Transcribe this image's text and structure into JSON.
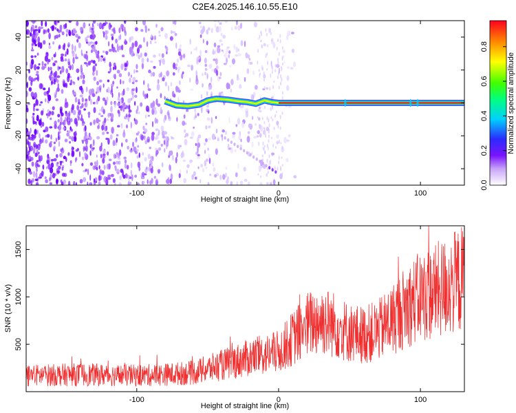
{
  "title": "C2E4.2025.146.10.55.E10",
  "colors": {
    "snr_line": "#f03030",
    "axis": "#000000",
    "background": "#ffffff"
  },
  "chart_data": [
    {
      "type": "heatmap",
      "xlabel": "Height of straight line (km)",
      "ylabel": "Frequency (Hz)",
      "xlim": [
        -178,
        131
      ],
      "ylim": [
        -50,
        50
      ],
      "x_ticks": [
        -100,
        0,
        100
      ],
      "y_ticks": [
        -40,
        -20,
        0,
        20,
        40
      ],
      "grid": false,
      "colorbar": {
        "label": "Normalized spectral amplitude",
        "range": [
          0,
          0.95
        ],
        "ticks": [
          "0.0",
          "0.2",
          "0.4",
          "0.6",
          "0.8"
        ],
        "colormap": "rainbow"
      },
      "dominant_line": {
        "frequency_hz": 0,
        "x_start_km": -80,
        "x_end_km": 131,
        "note_text": ""
      }
    },
    {
      "type": "line",
      "xlabel": "Height of straight line (km)",
      "ylabel": "SNR (10 * v/v)",
      "xlim": [
        -178,
        131
      ],
      "ylim": [
        0,
        1750
      ],
      "x_ticks": [
        -100,
        0,
        100
      ],
      "y_ticks": [
        500,
        1000,
        1500
      ],
      "grid": false,
      "series": [
        {
          "x": [
            -178,
            -160,
            -140,
            -120,
            -100,
            -80,
            -60,
            -40,
            -20,
            0,
            10,
            20,
            30,
            40,
            50,
            60,
            70,
            80,
            90,
            100,
            110,
            120,
            131
          ],
          "y": [
            170,
            175,
            180,
            175,
            170,
            180,
            200,
            280,
            360,
            420,
            560,
            700,
            760,
            700,
            620,
            600,
            640,
            760,
            900,
            1000,
            1050,
            1120,
            1200
          ]
        }
      ]
    }
  ]
}
